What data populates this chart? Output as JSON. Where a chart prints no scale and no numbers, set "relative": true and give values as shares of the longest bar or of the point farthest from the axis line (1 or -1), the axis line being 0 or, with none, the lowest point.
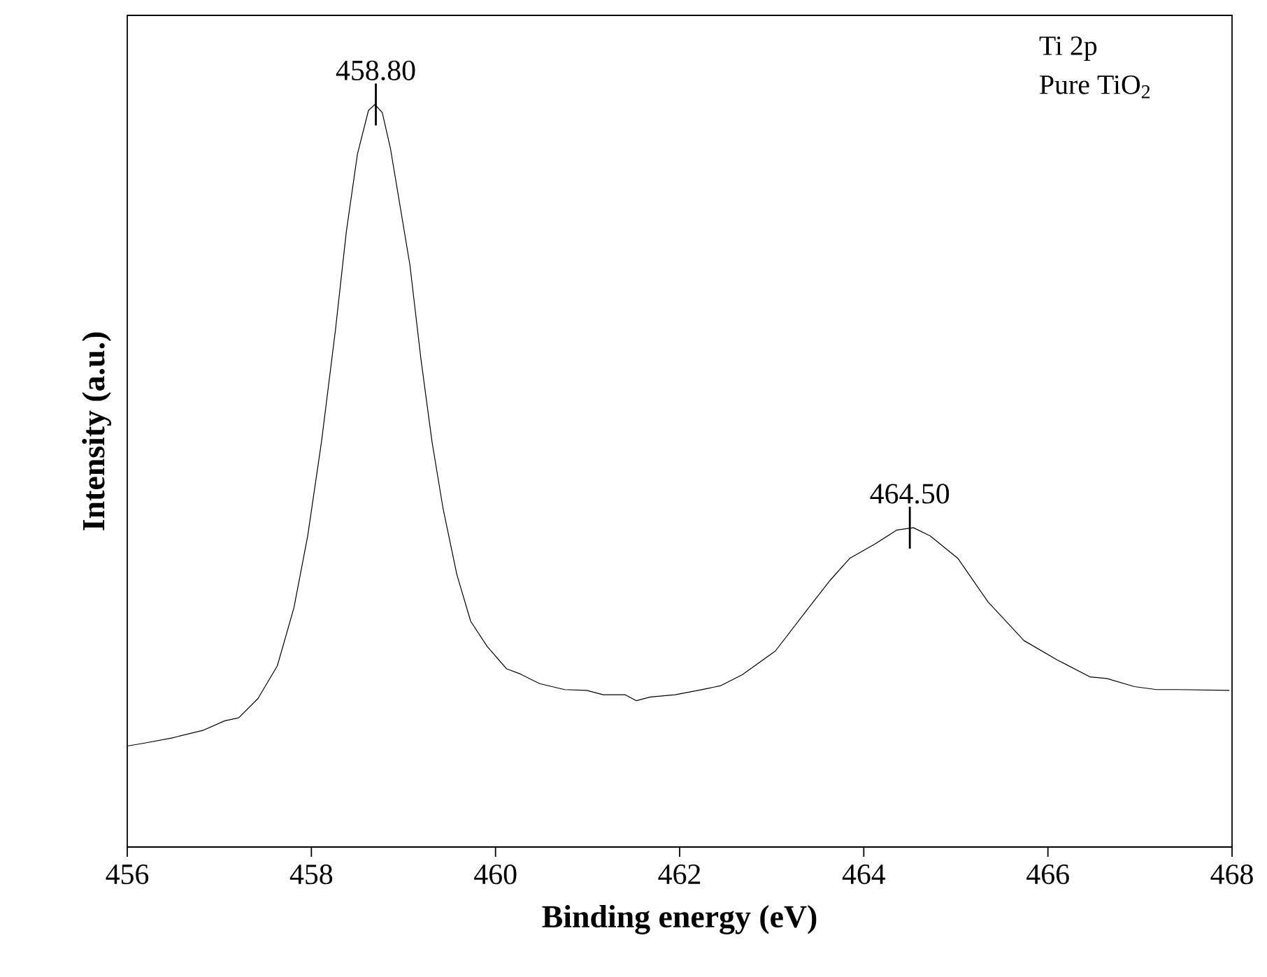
{
  "chart_data": {
    "type": "line",
    "xlabel": "Binding energy (eV)",
    "ylabel": "Intensity (a.u.)",
    "relative": true,
    "xlim": [
      456,
      468
    ],
    "xticks": [
      456,
      458,
      460,
      462,
      464,
      466,
      468
    ],
    "grid": false,
    "marker": "none",
    "line_style": "solid",
    "annotations": [
      {
        "text": "458.80",
        "x": 458.7,
        "y": 1.0
      },
      {
        "text": "464.50",
        "x": 464.5,
        "y": 0.43
      },
      "Ti 2p",
      "Pure TiO$_{2}$"
    ],
    "series": [
      {
        "color": "#000000",
        "x": [
          456.0,
          456.19,
          456.49,
          456.82,
          457.06,
          457.21,
          457.42,
          457.63,
          457.81,
          457.96,
          458.11,
          458.26,
          458.38,
          458.5,
          458.62,
          458.69,
          458.77,
          458.86,
          458.95,
          459.07,
          459.19,
          459.31,
          459.43,
          459.58,
          459.73,
          459.91,
          460.12,
          460.27,
          460.48,
          460.75,
          460.99,
          461.17,
          461.41,
          461.53,
          461.68,
          461.95,
          462.2,
          462.44,
          462.68,
          463.04,
          463.4,
          463.64,
          463.85,
          464.12,
          464.36,
          464.54,
          464.72,
          465.02,
          465.35,
          465.74,
          466.1,
          466.46,
          466.64,
          466.94,
          467.18,
          467.42,
          467.97
        ],
        "values": [
          0.136,
          0.14,
          0.147,
          0.157,
          0.17,
          0.174,
          0.2,
          0.244,
          0.322,
          0.419,
          0.546,
          0.695,
          0.829,
          0.933,
          0.992,
          1.0,
          0.989,
          0.94,
          0.873,
          0.784,
          0.657,
          0.546,
          0.456,
          0.367,
          0.304,
          0.27,
          0.24,
          0.233,
          0.22,
          0.212,
          0.211,
          0.205,
          0.205,
          0.197,
          0.202,
          0.205,
          0.211,
          0.217,
          0.232,
          0.264,
          0.322,
          0.36,
          0.389,
          0.408,
          0.427,
          0.43,
          0.419,
          0.389,
          0.33,
          0.278,
          0.252,
          0.229,
          0.227,
          0.216,
          0.212,
          0.212,
          0.211
        ]
      }
    ]
  }
}
